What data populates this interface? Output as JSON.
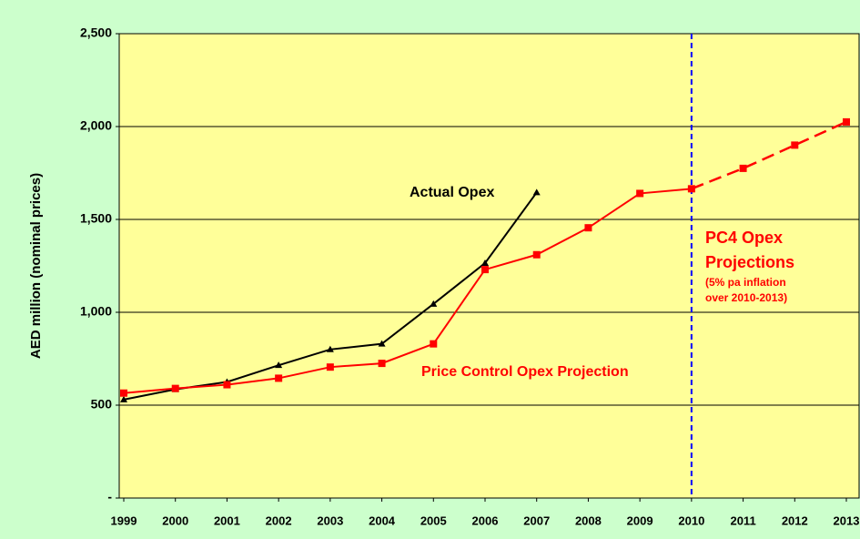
{
  "chart_data": {
    "type": "line",
    "x": [
      1999,
      2000,
      2001,
      2002,
      2003,
      2004,
      2005,
      2006,
      2007,
      2008,
      2009,
      2010,
      2011,
      2012,
      2013
    ],
    "series": [
      {
        "name": "Actual Opex",
        "color": "#000000",
        "marker": "triangle",
        "values": [
          530,
          585,
          625,
          715,
          800,
          830,
          1045,
          1265,
          1645,
          null,
          null,
          null,
          null,
          null,
          null
        ]
      },
      {
        "name": "Price Control Opex Projection",
        "color": "#ff0000",
        "marker": "square",
        "dashed_from": 2010,
        "values": [
          565,
          590,
          610,
          645,
          705,
          725,
          830,
          1230,
          1310,
          1455,
          1640,
          1665,
          1775,
          1900,
          2025
        ]
      }
    ],
    "xlim": [
      1999,
      2013
    ],
    "xticks": [
      1999,
      2000,
      2001,
      2002,
      2003,
      2004,
      2005,
      2006,
      2007,
      2008,
      2009,
      2010,
      2011,
      2012,
      2013
    ],
    "ylim": [
      0,
      2500
    ],
    "yticks": [
      {
        "value": 0,
        "label": "-"
      },
      500,
      {
        "value": 1000,
        "label": "1,000"
      },
      {
        "value": 1500,
        "label": "1,500"
      },
      {
        "value": 2000,
        "label": "2,000"
      },
      {
        "value": 2500,
        "label": "2,500"
      }
    ],
    "ylabel": "AED million (nominal prices)",
    "grid": true,
    "vline": {
      "x": 2010,
      "color": "#0000ff"
    },
    "annotations": [
      "PC4 Opex",
      "Projections",
      "(5% pa inflation",
      "over 2010-2013)"
    ]
  }
}
